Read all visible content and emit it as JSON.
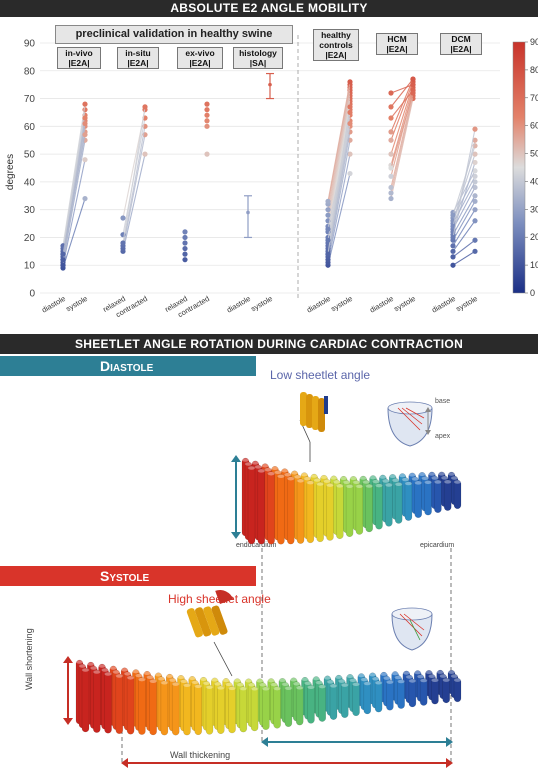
{
  "top_banner": "ABSOLUTE E2 ANGLE MOBILITY",
  "swine_title": "preclinical validation in healthy swine",
  "ylabel": "degrees",
  "yticks": [
    "0",
    "10",
    "20",
    "30",
    "40",
    "50",
    "60",
    "70",
    "80",
    "90"
  ],
  "groups": [
    {
      "tag_line1": "in-vivo",
      "tag_line2": "|E2A|"
    },
    {
      "tag_line1": "in-situ",
      "tag_line2": "|E2A|"
    },
    {
      "tag_line1": "ex-vivo",
      "tag_line2": "|E2A|"
    },
    {
      "tag_line1": "histology",
      "tag_line2": "|SA|"
    },
    {
      "tag_line1": "healthy",
      "tag_line2": "controls",
      "tag_line3": "|E2A|"
    },
    {
      "tag_line1": "HCM",
      "tag_line2": "|E2A|"
    },
    {
      "tag_line1": "DCM",
      "tag_line2": "|E2A|"
    }
  ],
  "xlabels": [
    [
      "diastole",
      "systole"
    ],
    [
      "relaxed",
      "contracted"
    ],
    [
      "relaxed",
      "contracted"
    ],
    [
      "diastole",
      "systole"
    ],
    [
      "diastole",
      "systole"
    ],
    [
      "diastole",
      "systole"
    ],
    [
      "diastole",
      "systole"
    ]
  ],
  "colorbar_ticks": [
    "90",
    "80",
    "70",
    "60",
    "50",
    "40",
    "30",
    "20",
    "10",
    "0"
  ],
  "bottom_banner": "SHEETLET ANGLE ROTATION DURING CARDIAC CONTRACTION",
  "diastole_title": "Diastole",
  "systole_title": "Systole",
  "low_angle_label": "Low sheetlet angle",
  "high_angle_label": "High sheetlet angle",
  "base_label": "base",
  "apex_label": "apex",
  "endocardium_label": "endocardium",
  "epicardium_label": "epicardium",
  "wall_shortening_label": "Wall shortening",
  "wall_thickening_label": "Wall thickening",
  "colors": {
    "red": "#d9342a",
    "blue": "#1f3c8c",
    "teal": "#2d7f95",
    "banner": "#2a2a2a"
  },
  "chart_data": {
    "type": "scatter",
    "ylabel": "degrees",
    "ylim": [
      0,
      90
    ],
    "colorbar_range": [
      0,
      90
    ],
    "groups": [
      {
        "name": "in-vivo |E2A|",
        "categories": [
          "diastole",
          "systole"
        ],
        "pairs": [
          [
            9,
            34
          ],
          [
            10,
            48
          ],
          [
            11,
            55
          ],
          [
            12,
            58
          ],
          [
            13,
            60
          ],
          [
            14,
            62
          ],
          [
            15,
            64
          ],
          [
            16,
            66
          ],
          [
            17,
            68
          ],
          [
            10,
            63
          ],
          [
            12,
            61
          ],
          [
            14,
            57
          ]
        ]
      },
      {
        "name": "in-situ |E2A|",
        "categories": [
          "relaxed",
          "contracted"
        ],
        "pairs": [
          [
            15,
            50
          ],
          [
            16,
            57
          ],
          [
            17,
            60
          ],
          [
            21,
            63
          ],
          [
            27,
            66
          ],
          [
            18,
            67
          ]
        ]
      },
      {
        "name": "ex-vivo |E2A|",
        "categories": [
          "relaxed",
          "contracted"
        ],
        "diastole_points": [
          12,
          14,
          16,
          18,
          20,
          22
        ],
        "systole_points": [
          50,
          60,
          62,
          64,
          66,
          68
        ]
      },
      {
        "name": "histology |SA|",
        "categories": [
          "diastole",
          "systole"
        ],
        "summary": [
          {
            "mean": 29,
            "low": 20,
            "high": 35
          },
          {
            "mean": 75,
            "low": 70,
            "high": 79
          }
        ]
      },
      {
        "name": "healthy controls |E2A|",
        "categories": [
          "diastole",
          "systole"
        ],
        "pairs": [
          [
            10,
            43
          ],
          [
            11,
            50
          ],
          [
            12,
            55
          ],
          [
            13,
            58
          ],
          [
            14,
            60
          ],
          [
            15,
            62
          ],
          [
            16,
            64
          ],
          [
            17,
            66
          ],
          [
            18,
            68
          ],
          [
            20,
            69
          ],
          [
            22,
            70
          ],
          [
            24,
            71
          ],
          [
            26,
            72
          ],
          [
            28,
            73
          ],
          [
            30,
            74
          ],
          [
            32,
            75
          ],
          [
            33,
            76
          ],
          [
            14,
            67
          ],
          [
            19,
            65
          ],
          [
            23,
            61
          ]
        ]
      },
      {
        "name": "HCM |E2A|",
        "categories": [
          "diastole",
          "systole"
        ],
        "pairs": [
          [
            34,
            70
          ],
          [
            36,
            71
          ],
          [
            38,
            72
          ],
          [
            42,
            73
          ],
          [
            46,
            74
          ],
          [
            50,
            75
          ],
          [
            55,
            76
          ],
          [
            58,
            77
          ],
          [
            63,
            73
          ],
          [
            67,
            77
          ],
          [
            72,
            75
          ],
          [
            45,
            72
          ]
        ]
      },
      {
        "name": "DCM |E2A|",
        "categories": [
          "diastole",
          "systole"
        ],
        "pairs": [
          [
            10,
            15
          ],
          [
            13,
            19
          ],
          [
            15,
            26
          ],
          [
            17,
            30
          ],
          [
            19,
            33
          ],
          [
            21,
            35
          ],
          [
            23,
            38
          ],
          [
            25,
            40
          ],
          [
            27,
            42
          ],
          [
            29,
            44
          ],
          [
            22,
            47
          ],
          [
            26,
            50
          ],
          [
            28,
            53
          ],
          [
            24,
            55
          ],
          [
            20,
            59
          ]
        ]
      }
    ]
  }
}
